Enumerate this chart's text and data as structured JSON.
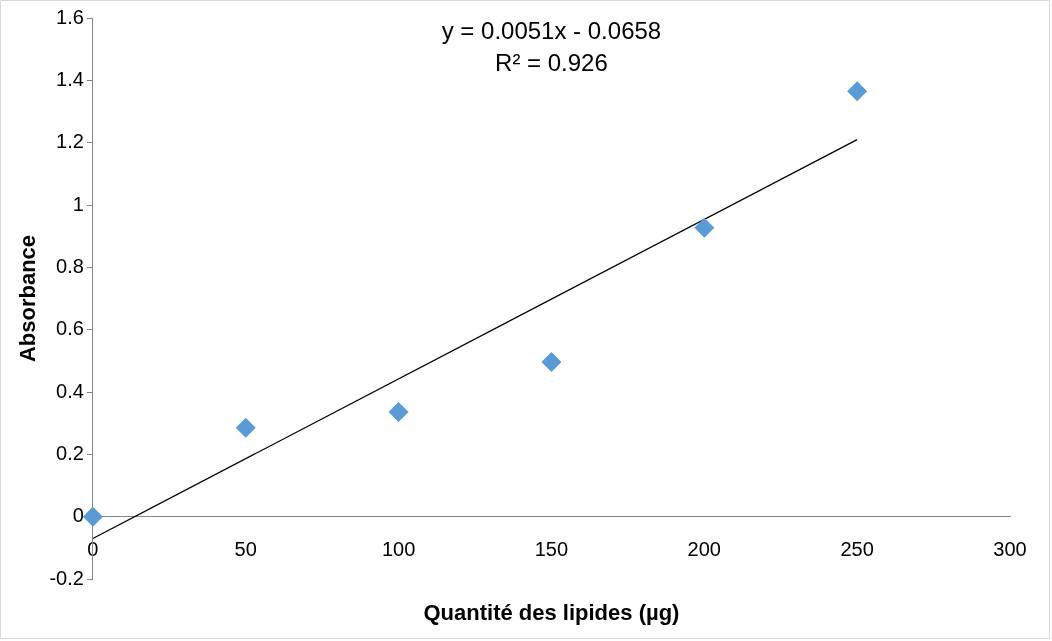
{
  "chart_data": {
    "type": "scatter",
    "xlabel": "Quantité des lipides (µg)",
    "ylabel": "Absorbance",
    "x": [
      0,
      50,
      100,
      150,
      200,
      250
    ],
    "series": [
      {
        "type": "scatter",
        "color": "#5b9bd5",
        "marker": "diamond",
        "values": [
          0,
          0.285,
          0.336,
          0.496,
          0.927,
          1.365
        ]
      },
      {
        "type": "line",
        "color": "#000000",
        "marker": "none",
        "x": [
          0,
          250
        ],
        "values": [
          -0.07,
          1.21
        ]
      }
    ],
    "xlim": [
      0,
      300
    ],
    "xticks": [
      0,
      50,
      100,
      150,
      200,
      250,
      300
    ],
    "ylim": [
      -0.2,
      1.6
    ],
    "yticks": [
      -0.2,
      0,
      0.2,
      0.4,
      0.6,
      0.8,
      1,
      1.2,
      1.4,
      1.6
    ],
    "grid": false,
    "legend": false,
    "annotations": [
      "y = 0.0051x - 0.0658",
      "R² = 0.926"
    ]
  }
}
